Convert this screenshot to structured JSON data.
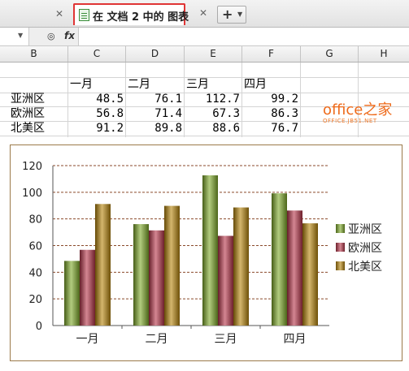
{
  "tabs": {
    "active_label": "在 文档 2 中的 图表"
  },
  "columns": [
    "B",
    "C",
    "D",
    "E",
    "F",
    "G",
    "H"
  ],
  "table": {
    "header": [
      "一月",
      "二月",
      "三月",
      "四月"
    ],
    "rows": [
      {
        "label": "亚洲区",
        "values": [
          "48.5",
          "76.1",
          "112.7",
          "99.2"
        ]
      },
      {
        "label": "欧洲区",
        "values": [
          "56.8",
          "71.4",
          "67.3",
          "86.3"
        ]
      },
      {
        "label": "北美区",
        "values": [
          "91.2",
          "89.8",
          "88.6",
          "76.7"
        ]
      }
    ]
  },
  "watermark": {
    "main": "office之家",
    "sub": "OFFICE.JB51.NET"
  },
  "icons": {
    "tab_close": "close-icon",
    "new_tab": "plus-icon",
    "zoom": "zoom-icon",
    "fx": "function-icon"
  },
  "colors": {
    "tab_border": "#e03535",
    "chart_border": "#9b7a4a",
    "asia": "#7faa2a",
    "europe": "#b8364a",
    "namerica": "#b8860b"
  },
  "chart_data": {
    "type": "bar",
    "title": "",
    "xlabel": "",
    "ylabel": "",
    "categories": [
      "一月",
      "二月",
      "三月",
      "四月"
    ],
    "series": [
      {
        "name": "亚洲区",
        "values": [
          48.5,
          76.1,
          112.7,
          99.2
        ],
        "color": "#7faa2a"
      },
      {
        "name": "欧洲区",
        "values": [
          56.8,
          71.4,
          67.3,
          86.3
        ],
        "color": "#b8364a"
      },
      {
        "name": "北美区",
        "values": [
          91.2,
          89.8,
          88.6,
          76.7
        ],
        "color": "#b8860b"
      }
    ],
    "ylim": [
      0,
      120
    ],
    "yticks": [
      "0",
      "20",
      "40",
      "60",
      "80",
      "100",
      "120"
    ],
    "grid": "horizontal dashed",
    "legend": "right"
  }
}
